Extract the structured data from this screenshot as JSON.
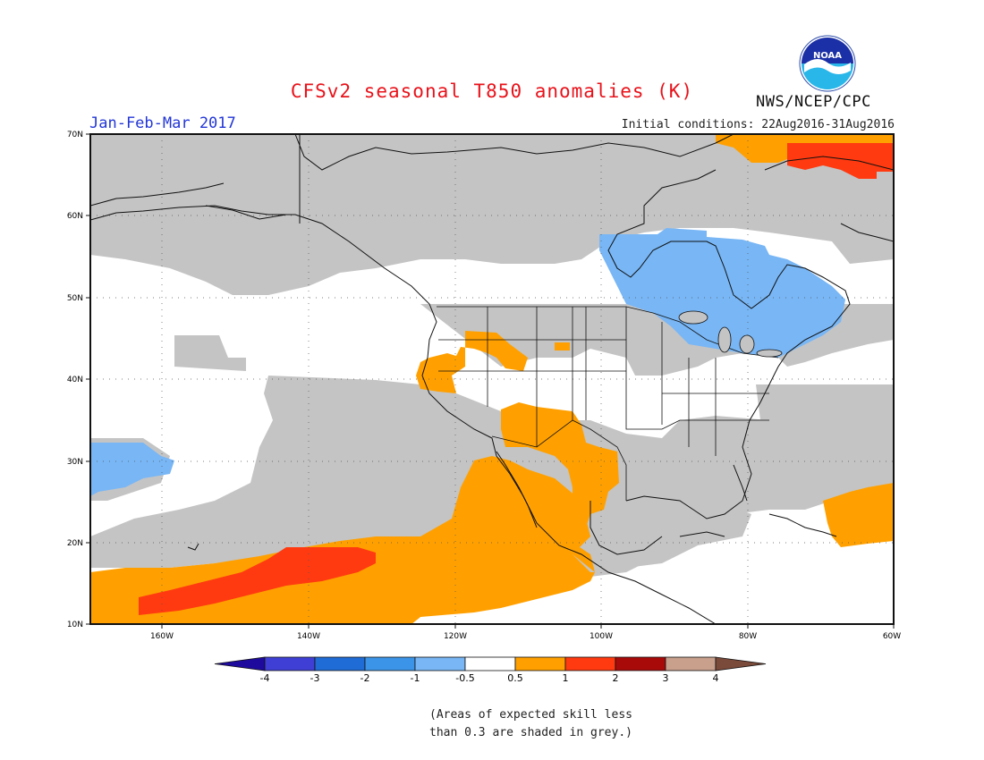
{
  "title": "CFSv2 seasonal T850 anomalies (K)",
  "period": "Jan-Feb-Mar 2017",
  "initial_conditions": "Initial conditions: 22Aug2016-31Aug2016",
  "agency": "NWS/NCEP/CPC",
  "logo_text": "NOAA",
  "lat_labels": [
    "70N",
    "60N",
    "50N",
    "40N",
    "30N",
    "20N",
    "10N"
  ],
  "lon_labels": [
    "160W",
    "140W",
    "120W",
    "100W",
    "80W",
    "60W"
  ],
  "colorbar": {
    "labels": [
      "-4",
      "-3",
      "-2",
      "-1",
      "-0.5",
      "0.5",
      "1",
      "2",
      "3",
      "4"
    ],
    "colors": [
      "#1e0b9e",
      "#3f3fd6",
      "#1f6cd6",
      "#3c94e8",
      "#78b6f5",
      "#ffffff",
      "#ffa000",
      "#ff3a10",
      "#a80a0a",
      "#c8a08c",
      "#7a4a3a"
    ]
  },
  "note_line1": "(Areas of expected skill less",
  "note_line2": "than 0.3 are shaded in grey.)",
  "colors": {
    "grey_mask": "#c4c4c4",
    "cold_anomaly": "#78b6f5",
    "warm_anomaly": "#ffa000",
    "hot_anomaly": "#ff3a10"
  }
}
